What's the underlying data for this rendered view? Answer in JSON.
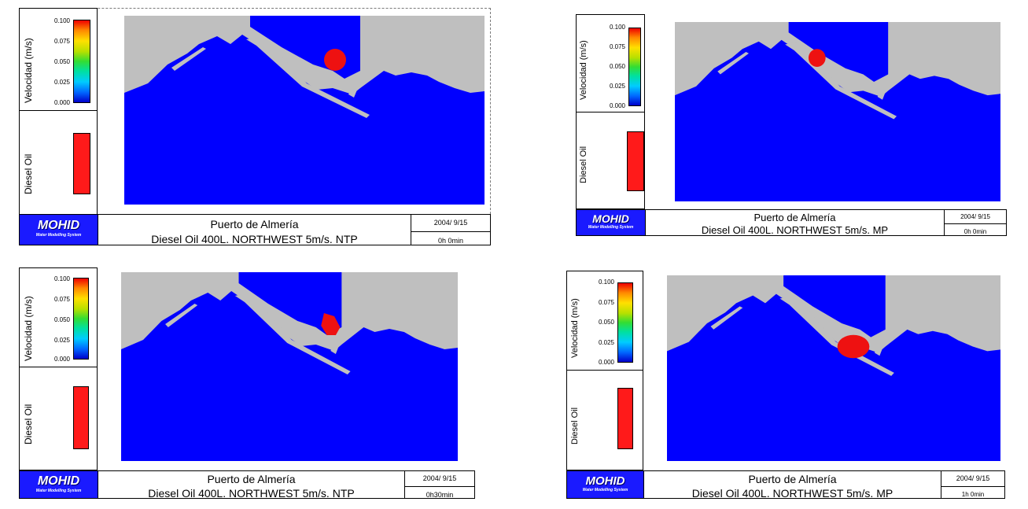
{
  "colors": {
    "water": "#0000ff",
    "land": "#bfbfbf",
    "oil": "#ee1111",
    "logo_bg": "#1a1aff"
  },
  "legend": {
    "velocity_label": "Velocidad  (m/s)",
    "velocity_ticks": [
      "0.100",
      "0.075",
      "0.050",
      "0.025",
      "0.000"
    ],
    "oil_label": "Diesel  Oil"
  },
  "logo": {
    "name": "MOHID",
    "subtitle": "Water Modelling System"
  },
  "panels": [
    {
      "title": "Puerto de Almería",
      "subtitle": "Diesel Oil 400L. NORTHWEST 5m/s. NTP",
      "date": "2004/ 9/15",
      "time": "0h 0min"
    },
    {
      "title": "Puerto de Almería",
      "subtitle": "Diesel Oil 400L. NORTHWEST 5m/s. MP",
      "date": "2004/ 9/15",
      "time": "0h 0min"
    },
    {
      "title": "Puerto de Almería",
      "subtitle": "Diesel Oil 400L. NORTHWEST 5m/s. NTP",
      "date": "2004/ 9/15",
      "time": "0h30min"
    },
    {
      "title": "Puerto de Almería",
      "subtitle": "Diesel Oil 400L. NORTHWEST 5m/s. MP",
      "date": "2004/ 9/15",
      "time": "1h 0min"
    }
  ]
}
